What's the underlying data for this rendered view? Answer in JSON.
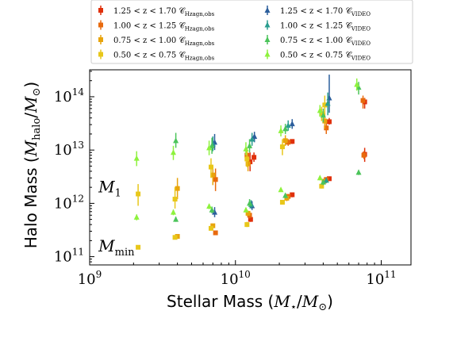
{
  "chart_data": {
    "type": "scatter",
    "xlabel": "Stellar Mass (M⋆/M⊙)",
    "ylabel": "Halo Mass (Mhalo/M⊙)",
    "xscale": "log",
    "yscale": "log",
    "xlim": [
      1000000000.0,
      160000000000.0
    ],
    "ylim": [
      70000000000.0,
      320000000000000.0
    ],
    "x_ticks": [
      {
        "value": 1000000000.0,
        "label": "10^9"
      },
      {
        "value": 10000000000.0,
        "label": "10^10"
      },
      {
        "value": 100000000000.0,
        "label": "10^11"
      }
    ],
    "y_ticks": [
      {
        "value": 100000000000.0,
        "label": "10^11"
      },
      {
        "value": 1000000000000.0,
        "label": "10^12"
      },
      {
        "value": 10000000000000.0,
        "label": "10^13"
      },
      {
        "value": 100000000000000.0,
        "label": "10^14"
      }
    ],
    "annotations": [
      {
        "text": "M1",
        "main": "M",
        "sub": "1",
        "x": 1150000000.0,
        "y": 1600000000000.0
      },
      {
        "text": "Mmin",
        "main": "M",
        "sub": "min",
        "x": 1150000000.0,
        "y": 125000000000.0
      }
    ],
    "legend": {
      "placement": "top",
      "columns": 2
    },
    "series": [
      {
        "name": "1.25 < z < 1.70 C_Hzagn,obs",
        "label_main": "1.25 < z < 1.70 𝒞",
        "label_sub": "Hzagn,obs",
        "color": "#e0300b",
        "marker": "square",
        "points": [
          {
            "x": 12600000000.0,
            "y": 6000000000000.0,
            "lo": 4000000000000.0,
            "hi": 9000000000000.0
          },
          {
            "x": 13400000000.0,
            "y": 7300000000000.0,
            "lo": 6000000000000.0,
            "hi": 9000000000000.0
          },
          {
            "x": 24500000000.0,
            "y": 14500000000000.0,
            "lo": 13000000000000.0,
            "hi": 16000000000000.0
          },
          {
            "x": 44000000000.0,
            "y": 34000000000000.0,
            "lo": 30000000000000.0,
            "hi": 40000000000000.0
          },
          {
            "x": 77000000000.0,
            "y": 80000000000000.0,
            "lo": 60000000000000.0,
            "hi": 95000000000000.0
          },
          {
            "x": 12700000000.0,
            "y": 500000000000.0,
            "lo": 450000000000.0,
            "hi": 560000000000.0
          },
          {
            "x": 24500000000.0,
            "y": 1450000000000.0,
            "lo": 1300000000000.0,
            "hi": 1600000000000.0
          },
          {
            "x": 44000000000.0,
            "y": 2900000000000.0,
            "lo": 2700000000000.0,
            "hi": 3200000000000.0
          },
          {
            "x": 77000000000.0,
            "y": 8300000000000.0,
            "lo": 6000000000000.0,
            "hi": 11000000000000.0
          }
        ]
      },
      {
        "name": "1.00 < z < 1.25 C_Hzagn,obs",
        "label_main": "1.00 < z < 1.25 𝒞",
        "label_sub": "Hzagn,obs",
        "color": "#e86a0e",
        "marker": "square",
        "points": [
          {
            "x": 7300000000.0,
            "y": 280000000000.0,
            "lo": 260000000000.0,
            "hi": 300000000000.0
          },
          {
            "x": 7300000000.0,
            "y": 2800000000000.0,
            "lo": 1700000000000.0,
            "hi": 4500000000000.0
          },
          {
            "x": 12000000000.0,
            "y": 8000000000000.0,
            "lo": 5500000000000.0,
            "hi": 11000000000000.0
          },
          {
            "x": 23000000000.0,
            "y": 14000000000000.0,
            "lo": 12000000000000.0,
            "hi": 16000000000000.0
          },
          {
            "x": 42000000000.0,
            "y": 26000000000000.0,
            "lo": 20000000000000.0,
            "hi": 32000000000000.0
          },
          {
            "x": 75000000000.0,
            "y": 85000000000000.0,
            "lo": 60000000000000.0,
            "hi": 105000000000000.0
          },
          {
            "x": 12500000000.0,
            "y": 600000000000.0,
            "lo": 520000000000.0,
            "hi": 680000000000.0
          },
          {
            "x": 23000000000.0,
            "y": 1350000000000.0,
            "lo": 1200000000000.0,
            "hi": 1500000000000.0
          },
          {
            "x": 42000000000.0,
            "y": 2800000000000.0,
            "lo": 2500000000000.0,
            "hi": 3100000000000.0
          },
          {
            "x": 76000000000.0,
            "y": 8000000000000.0,
            "lo": 6800000000000.0,
            "hi": 9500000000000.0
          }
        ]
      },
      {
        "name": "0.75 < z < 1.00 C_Hzagn,obs",
        "label_main": "0.75 < z < 1.00 𝒞",
        "label_sub": "Hzagn,obs",
        "color": "#e8a40c",
        "marker": "square",
        "points": [
          {
            "x": 4000000000.0,
            "y": 240000000000.0,
            "lo": 220000000000.0,
            "hi": 260000000000.0
          },
          {
            "x": 4000000000.0,
            "y": 1900000000000.0,
            "lo": 1200000000000.0,
            "hi": 3000000000000.0
          },
          {
            "x": 7000000000.0,
            "y": 380000000000.0,
            "lo": 350000000000.0,
            "hi": 410000000000.0
          },
          {
            "x": 7000000000.0,
            "y": 3400000000000.0,
            "lo": 2200000000000.0,
            "hi": 5000000000000.0
          },
          {
            "x": 12200000000.0,
            "y": 5500000000000.0,
            "lo": 4000000000000.0,
            "hi": 7500000000000.0
          },
          {
            "x": 22000000000.0,
            "y": 15000000000000.0,
            "lo": 12000000000000.0,
            "hi": 19000000000000.0
          },
          {
            "x": 41000000000.0,
            "y": 35000000000000.0,
            "lo": 25000000000000.0,
            "hi": 50000000000000.0
          },
          {
            "x": 12200000000.0,
            "y": 650000000000.0,
            "lo": 580000000000.0,
            "hi": 730000000000.0
          },
          {
            "x": 22500000000.0,
            "y": 1250000000000.0,
            "lo": 1100000000000.0,
            "hi": 1400000000000.0
          },
          {
            "x": 40500000000.0,
            "y": 2600000000000.0,
            "lo": 2300000000000.0,
            "hi": 2900000000000.0
          }
        ]
      },
      {
        "name": "0.50 < z < 0.75 C_Hzagn,obs",
        "label_main": "0.50 < z < 0.75 𝒞",
        "label_sub": "Hzagn,obs",
        "color": "#e8c71a",
        "marker": "square",
        "points": [
          {
            "x": 2150000000.0,
            "y": 150000000000.0,
            "lo": 140000000000.0,
            "hi": 160000000000.0
          },
          {
            "x": 2150000000.0,
            "y": 1500000000000.0,
            "lo": 900000000000.0,
            "hi": 2300000000000.0
          },
          {
            "x": 3850000000.0,
            "y": 230000000000.0,
            "lo": 210000000000.0,
            "hi": 250000000000.0
          },
          {
            "x": 3850000000.0,
            "y": 1200000000000.0,
            "lo": 800000000000.0,
            "hi": 2000000000000.0
          },
          {
            "x": 6800000000.0,
            "y": 340000000000.0,
            "lo": 310000000000.0,
            "hi": 370000000000.0
          },
          {
            "x": 6800000000.0,
            "y": 4800000000000.0,
            "lo": 3000000000000.0,
            "hi": 7000000000000.0
          },
          {
            "x": 12000000000.0,
            "y": 6800000000000.0,
            "lo": 4800000000000.0,
            "hi": 9500000000000.0
          },
          {
            "x": 21000000000.0,
            "y": 11500000000000.0,
            "lo": 8000000000000.0,
            "hi": 16000000000000.0
          },
          {
            "x": 39000000000.0,
            "y": 48000000000000.0,
            "lo": 35000000000000.0,
            "hi": 65000000000000.0
          },
          {
            "x": 41000000000.0,
            "y": 70000000000000.0,
            "lo": 45000000000000.0,
            "hi": 105000000000000.0
          },
          {
            "x": 12000000000.0,
            "y": 400000000000.0,
            "lo": 360000000000.0,
            "hi": 450000000000.0
          },
          {
            "x": 21000000000.0,
            "y": 1050000000000.0,
            "lo": 950000000000.0,
            "hi": 1150000000000.0
          },
          {
            "x": 39000000000.0,
            "y": 2100000000000.0,
            "lo": 1900000000000.0,
            "hi": 2300000000000.0
          }
        ]
      },
      {
        "name": "1.25 < z < 1.70 C_VIDEO",
        "label_main": "1.25 < z < 1.70 𝒞",
        "label_sub": "VIDEO",
        "color": "#2b5e9c",
        "marker": "triangle",
        "points": [
          {
            "x": 7200000000.0,
            "y": 14000000000000.0,
            "lo": 10000000000000.0,
            "hi": 20000000000000.0
          },
          {
            "x": 13500000000.0,
            "y": 18000000000000.0,
            "lo": 14000000000000.0,
            "hi": 22000000000000.0
          },
          {
            "x": 24500000000.0,
            "y": 31000000000000.0,
            "lo": 25000000000000.0,
            "hi": 38000000000000.0
          },
          {
            "x": 44000000000.0,
            "y": 95000000000000.0,
            "lo": 50000000000000.0,
            "hi": 260000000000000.0
          },
          {
            "x": 13000000000.0,
            "y": 900000000000.0,
            "lo": 750000000000.0,
            "hi": 1100000000000.0
          },
          {
            "x": 7200000000.0,
            "y": 680000000000.0,
            "lo": 550000000000.0,
            "hi": 850000000000.0
          }
        ]
      },
      {
        "name": "1.00 < z < 1.25 C_VIDEO",
        "label_main": "1.00 < z < 1.25 𝒞",
        "label_sub": "VIDEO",
        "color": "#2a9d8f",
        "marker": "triangle",
        "points": [
          {
            "x": 7000000000.0,
            "y": 13000000000000.0,
            "lo": 9500000000000.0,
            "hi": 18000000000000.0
          },
          {
            "x": 13000000000.0,
            "y": 16000000000000.0,
            "lo": 12000000000000.0,
            "hi": 21000000000000.0
          },
          {
            "x": 23000000000.0,
            "y": 29000000000000.0,
            "lo": 23000000000000.0,
            "hi": 36000000000000.0
          },
          {
            "x": 43000000000.0,
            "y": 75000000000000.0,
            "lo": 45000000000000.0,
            "hi": 120000000000000.0
          },
          {
            "x": 12800000000.0,
            "y": 950000000000.0,
            "lo": 800000000000.0,
            "hi": 1150000000000.0
          },
          {
            "x": 42000000000.0,
            "y": 2700000000000.0,
            "lo": 2400000000000.0,
            "hi": 3000000000000.0
          }
        ]
      },
      {
        "name": "0.75 < z < 1.00 C_VIDEO",
        "label_main": "0.75 < z < 1.00 𝒞",
        "label_sub": "VIDEO",
        "color": "#4bc45a",
        "marker": "triangle",
        "points": [
          {
            "x": 3900000000.0,
            "y": 15000000000000.0,
            "lo": 11000000000000.0,
            "hi": 21000000000000.0
          },
          {
            "x": 3900000000.0,
            "y": 500000000000.0,
            "lo": 450000000000.0,
            "hi": 560000000000.0
          },
          {
            "x": 6900000000.0,
            "y": 12000000000000.0,
            "lo": 8500000000000.0,
            "hi": 17000000000000.0
          },
          {
            "x": 6900000000.0,
            "y": 750000000000.0,
            "lo": 650000000000.0,
            "hi": 870000000000.0
          },
          {
            "x": 12500000000.0,
            "y": 12000000000000.0,
            "lo": 9000000000000.0,
            "hi": 16000000000000.0
          },
          {
            "x": 12500000000.0,
            "y": 1000000000000.0,
            "lo": 850000000000.0,
            "hi": 1200000000000.0
          },
          {
            "x": 22000000000.0,
            "y": 25000000000000.0,
            "lo": 20000000000000.0,
            "hi": 31000000000000.0
          },
          {
            "x": 22000000000.0,
            "y": 1400000000000.0,
            "lo": 1250000000000.0,
            "hi": 1550000000000.0
          },
          {
            "x": 40000000000.0,
            "y": 45000000000000.0,
            "lo": 33000000000000.0,
            "hi": 60000000000000.0
          },
          {
            "x": 40000000000.0,
            "y": 2500000000000.0,
            "lo": 2200000000000.0,
            "hi": 2800000000000.0
          },
          {
            "x": 70000000000.0,
            "y": 150000000000000.0,
            "lo": 110000000000000.0,
            "hi": 190000000000000.0
          },
          {
            "x": 70000000000.0,
            "y": 3800000000000.0,
            "lo": 3400000000000.0,
            "hi": 4200000000000.0
          }
        ]
      },
      {
        "name": "0.50 < z < 0.75 C_VIDEO",
        "label_main": "0.50 < z < 0.75 𝒞",
        "label_sub": "VIDEO",
        "color": "#8ef23d",
        "marker": "triangle",
        "points": [
          {
            "x": 2100000000.0,
            "y": 7000000000000.0,
            "lo": 5000000000000.0,
            "hi": 9500000000000.0
          },
          {
            "x": 2100000000.0,
            "y": 550000000000.0,
            "lo": 480000000000.0,
            "hi": 620000000000.0
          },
          {
            "x": 3750000000.0,
            "y": 9000000000000.0,
            "lo": 6500000000000.0,
            "hi": 12000000000000.0
          },
          {
            "x": 3750000000.0,
            "y": 680000000000.0,
            "lo": 600000000000.0,
            "hi": 760000000000.0
          },
          {
            "x": 6600000000.0,
            "y": 11000000000000.0,
            "lo": 8000000000000.0,
            "hi": 15000000000000.0
          },
          {
            "x": 6600000000.0,
            "y": 880000000000.0,
            "lo": 780000000000.0,
            "hi": 980000000000.0
          },
          {
            "x": 11800000000.0,
            "y": 10500000000000.0,
            "lo": 8000000000000.0,
            "hi": 14000000000000.0
          },
          {
            "x": 11800000000.0,
            "y": 750000000000.0,
            "lo": 680000000000.0,
            "hi": 830000000000.0
          },
          {
            "x": 20500000000.0,
            "y": 23000000000000.0,
            "lo": 18000000000000.0,
            "hi": 29000000000000.0
          },
          {
            "x": 20500000000.0,
            "y": 1800000000000.0,
            "lo": 1650000000000.0,
            "hi": 1950000000000.0
          },
          {
            "x": 38000000000.0,
            "y": 55000000000000.0,
            "lo": 42000000000000.0,
            "hi": 70000000000000.0
          },
          {
            "x": 38000000000.0,
            "y": 3000000000000.0,
            "lo": 2700000000000.0,
            "hi": 3300000000000.0
          },
          {
            "x": 68000000000.0,
            "y": 170000000000000.0,
            "lo": 130000000000000.0,
            "hi": 220000000000000.0
          }
        ]
      }
    ]
  }
}
